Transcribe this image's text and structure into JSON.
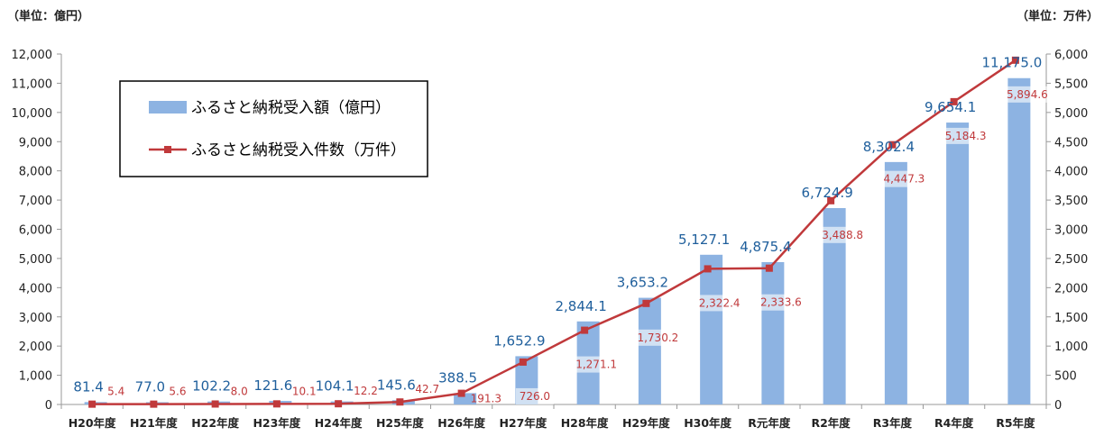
{
  "chart_data": {
    "type": "bar+line",
    "y_left_unit": "（単位：億円）",
    "y_right_unit": "（単位：万件）",
    "categories": [
      "H20年度",
      "H21年度",
      "H22年度",
      "H23年度",
      "H24年度",
      "H25年度",
      "H26年度",
      "H27年度",
      "H28年度",
      "H29年度",
      "H30年度",
      "R元年度",
      "R2年度",
      "R3年度",
      "R4年度",
      "R5年度"
    ],
    "bar_series": {
      "name": "ふるさと納税受入額（億円）",
      "values": [
        81.4,
        77.0,
        102.2,
        121.6,
        104.1,
        145.6,
        388.5,
        1652.9,
        2844.1,
        3653.2,
        5127.1,
        4875.4,
        6724.9,
        8302.4,
        9654.1,
        11175.0
      ],
      "labels": [
        "81.4",
        "77.0",
        "102.2",
        "121.6",
        "104.1",
        "145.6",
        "388.5",
        "1,652.9",
        "2,844.1",
        "3,653.2",
        "5,127.1",
        "4,875.4",
        "6,724.9",
        "8,302.4",
        "9,654.1",
        "11,175.0"
      ],
      "color": "#8db3e2"
    },
    "line_series": {
      "name": "ふるさと納税受入件数（万件）",
      "values": [
        5.4,
        5.6,
        8.0,
        10.1,
        12.2,
        42.7,
        191.3,
        726.0,
        1271.1,
        1730.2,
        2322.4,
        2333.6,
        3488.8,
        4447.3,
        5184.3,
        5894.6
      ],
      "labels": [
        "5.4",
        "5.6",
        "8.0",
        "10.1",
        "12.2",
        "42.7",
        "191.3",
        "726.0",
        "1,271.1",
        "1,730.2",
        "2,322.4",
        "2,333.6",
        "3,488.8",
        "4,447.3",
        "5,184.3",
        "5,894.6"
      ],
      "color": "#c0393b"
    },
    "y_left": {
      "min": 0,
      "max": 12000,
      "step": 1000,
      "tick_labels": [
        "0",
        "1,000",
        "2,000",
        "3,000",
        "4,000",
        "5,000",
        "6,000",
        "7,000",
        "8,000",
        "9,000",
        "10,000",
        "11,000",
        "12,000"
      ]
    },
    "y_right": {
      "min": 0,
      "max": 6000,
      "step": 500,
      "tick_labels": [
        "0",
        "500",
        "1,000",
        "1,500",
        "2,000",
        "2,500",
        "3,000",
        "3,500",
        "4,000",
        "4,500",
        "5,000",
        "5,500",
        "6,000"
      ]
    },
    "legend_position": "top-left",
    "grid": false
  }
}
